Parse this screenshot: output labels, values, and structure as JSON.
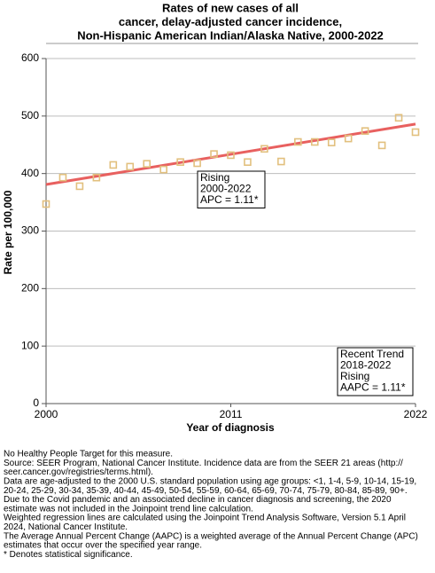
{
  "chart_data": {
    "type": "scatter",
    "title": [
      "Rates of new cases of all",
      "cancer, delay-adjusted cancer incidence,",
      "Non-Hispanic American Indian/Alaska Native,  2000-2022"
    ],
    "x_label": "Year of diagnosis",
    "y_label": "Rate per 100,000",
    "x": [
      2000,
      2001,
      2002,
      2003,
      2004,
      2005,
      2006,
      2007,
      2008,
      2009,
      2010,
      2011,
      2012,
      2013,
      2014,
      2015,
      2016,
      2017,
      2018,
      2019,
      2020,
      2021,
      2022
    ],
    "values": [
      347,
      393,
      378,
      393,
      415,
      412,
      417,
      407,
      420,
      418,
      434,
      432,
      420,
      443,
      421,
      455,
      455,
      454,
      461,
      474,
      449,
      497,
      472
    ],
    "color": "#e2c07e",
    "trend": {
      "x": [
        2000,
        2022
      ],
      "values": [
        381,
        486
      ],
      "color": "#e8605f"
    },
    "xlim": [
      2000,
      2022
    ],
    "xticks": [
      2000,
      2011,
      2022
    ],
    "ylim": [
      0,
      600
    ],
    "yticks": [
      0,
      100,
      200,
      300,
      400,
      500,
      600
    ],
    "grid": true,
    "annotations": [
      [
        "Rising",
        "2000-2022",
        "APC =  1.11*"
      ],
      [
        "Recent Trend",
        "2018-2022",
        "Rising",
        "AAPC =  1.11*"
      ]
    ],
    "footnotes": [
      "No Healthy People Target for this measure.",
      "Source: SEER Program, National Cancer Institute. Incidence data are from the SEER 21 areas (http://",
      "seer.cancer.gov/registries/terms.html).",
      "Data are age-adjusted to the 2000 U.S. standard population using age groups: <1, 1-4, 5-9, 10-14, 15-19,",
      "20-24, 25-29, 30-34, 35-39, 40-44, 45-49, 50-54, 55-59, 60-64, 65-69, 70-74, 75-79, 80-84, 85-89, 90+.",
      "Due to the Covid pandemic and an associated decline in cancer diagnosis and screening, the 2020",
      "estimate was not included in the Joinpoint trend line calculation.",
      "Weighted regression lines are calculated using the Joinpoint Trend Analysis Software, Version 5.1 April",
      "2024, National Cancer Institute.",
      "The Average Annual Percent Change (AAPC) is a weighted average of the Annual Percent Change (APC)",
      "estimates that occur over the specified year range.",
      "* Denotes statistical significance."
    ]
  }
}
